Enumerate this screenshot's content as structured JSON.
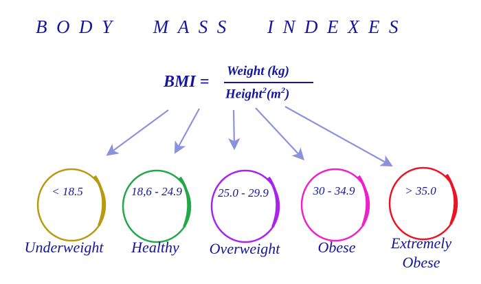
{
  "title": "BODY MASS INDEXES",
  "formula": {
    "lhs": "BMI =",
    "numerator": "Weight (kg)",
    "denominator_main": "Height",
    "denominator_exp": "2",
    "denominator_unit_open": "(m",
    "denominator_unit_exp": "2",
    "denominator_unit_close": ")"
  },
  "categories": [
    {
      "range": "< 18.5",
      "label": "Underweight",
      "color": "#b89a10"
    },
    {
      "range": "18,6 - 24.9",
      "label": "Healthy",
      "color": "#22a848"
    },
    {
      "range": "25.0 - 29.9",
      "label": "Overweight",
      "color": "#a824ee"
    },
    {
      "range": "30 - 34.9",
      "label": "Obese",
      "color": "#ec22c8"
    },
    {
      "range": "> 35.0",
      "label_line1": "Extremely",
      "label_line2": "Obese",
      "color": "#ea1426"
    }
  ],
  "arrow_color": "#8a92dc"
}
